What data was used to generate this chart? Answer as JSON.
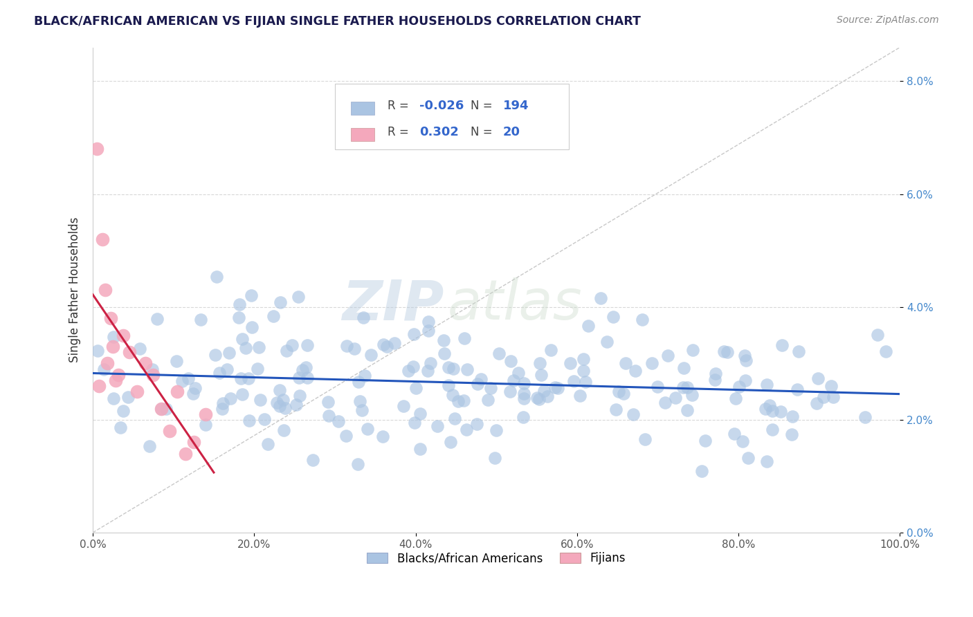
{
  "title": "BLACK/AFRICAN AMERICAN VS FIJIAN SINGLE FATHER HOUSEHOLDS CORRELATION CHART",
  "source_text": "Source: ZipAtlas.com",
  "ylabel": "Single Father Households",
  "xlabel_ticks": [
    "0.0%",
    "20.0%",
    "40.0%",
    "60.0%",
    "80.0%",
    "100.0%"
  ],
  "ylabel_ticks": [
    "0.0%",
    "2.0%",
    "4.0%",
    "6.0%",
    "8.0%"
  ],
  "xlim": [
    0.0,
    1.0
  ],
  "ylim": [
    0.0,
    0.086
  ],
  "blue_R": -0.026,
  "blue_N": 194,
  "pink_R": 0.302,
  "pink_N": 20,
  "blue_color": "#aac4e2",
  "pink_color": "#f4a8bc",
  "blue_line_color": "#2255bb",
  "pink_line_color": "#cc2244",
  "legend_blue_label": "Blacks/African Americans",
  "legend_pink_label": "Fijians",
  "watermark_zip": "ZIP",
  "watermark_atlas": "atlas",
  "background_color": "#ffffff",
  "grid_color": "#cccccc",
  "title_color": "#1a1a4e",
  "source_color": "#888888"
}
